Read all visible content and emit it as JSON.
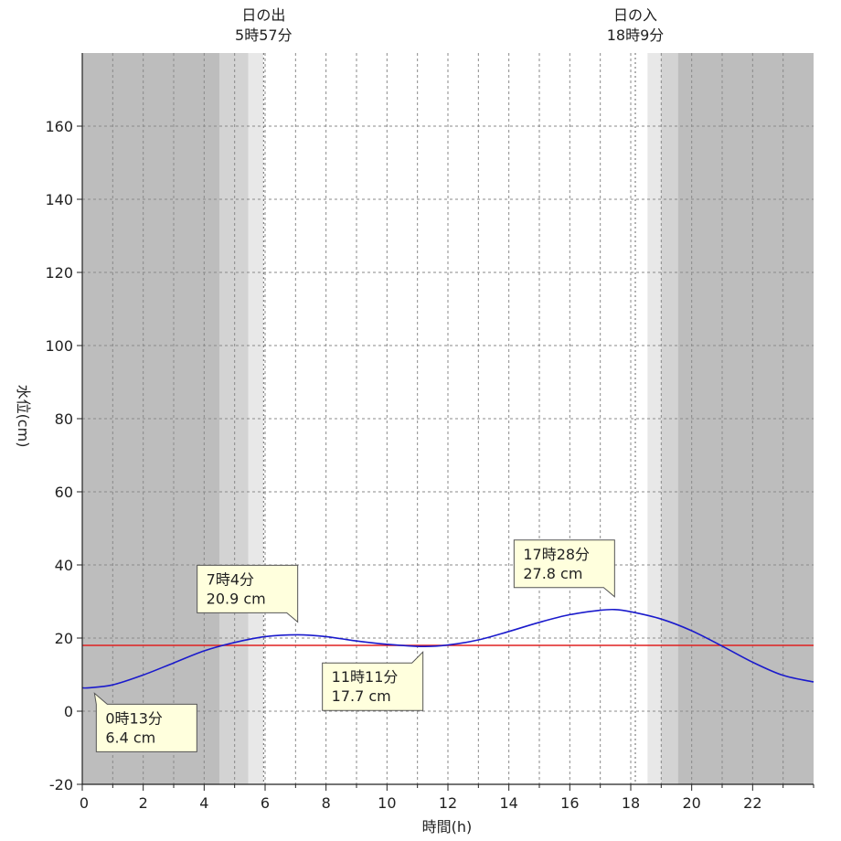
{
  "chart_data": {
    "type": "line",
    "xlabel": "時間(h)",
    "ylabel": "水位(cm)",
    "xlim": [
      0,
      24
    ],
    "ylim": [
      -20,
      180
    ],
    "xticks": [
      0,
      2,
      4,
      6,
      8,
      10,
      12,
      14,
      16,
      18,
      20,
      22
    ],
    "yticks": [
      -20,
      0,
      20,
      40,
      60,
      80,
      100,
      120,
      140,
      160
    ],
    "grid": true,
    "sunrise": {
      "label": "日の出",
      "time": "5時57分",
      "hour": 5.95
    },
    "sunset": {
      "label": "日の入",
      "time": "18時9分",
      "hour": 18.15
    },
    "shading": [
      {
        "from": 0,
        "to": 4.5,
        "color": "#bdbdbd"
      },
      {
        "from": 4.5,
        "to": 5.45,
        "color": "#d3d3d3"
      },
      {
        "from": 5.45,
        "to": 5.95,
        "color": "#e8e8e8"
      },
      {
        "from": 5.95,
        "to": 18.55,
        "color": "#ffffff"
      },
      {
        "from": 18.55,
        "to": 19.0,
        "color": "#e8e8e8"
      },
      {
        "from": 19.0,
        "to": 19.55,
        "color": "#d3d3d3"
      },
      {
        "from": 19.55,
        "to": 24,
        "color": "#bdbdbd"
      }
    ],
    "reference_line": {
      "value": 18,
      "color": "#e02020"
    },
    "series": [
      {
        "color": "#1a1acc",
        "x": [
          0,
          0.22,
          1,
          2,
          3,
          4,
          5,
          6,
          7.07,
          8,
          9,
          10,
          11.18,
          12,
          13,
          14,
          15,
          16,
          17,
          17.47,
          18,
          19,
          20,
          21,
          22,
          23,
          24
        ],
        "y": [
          6.4,
          6.4,
          7.2,
          9.9,
          13.2,
          16.5,
          18.8,
          20.4,
          20.9,
          20.4,
          19.2,
          18.3,
          17.7,
          18.1,
          19.5,
          21.8,
          24.3,
          26.4,
          27.6,
          27.8,
          27.2,
          25.2,
          22.0,
          17.8,
          13.4,
          9.8,
          8.0
        ]
      }
    ],
    "annotations": [
      {
        "line1": "0時13分",
        "line2": "6.4 cm",
        "x": 0.22,
        "y": 6.4,
        "pos": "below"
      },
      {
        "line1": "7時4分",
        "line2": "20.9 cm",
        "x": 7.07,
        "y": 20.9,
        "pos": "above"
      },
      {
        "line1": "11時11分",
        "line2": "17.7 cm",
        "x": 11.18,
        "y": 17.7,
        "pos": "below"
      },
      {
        "line1": "17時28分",
        "line2": "27.8 cm",
        "x": 17.47,
        "y": 27.8,
        "pos": "above"
      }
    ]
  }
}
